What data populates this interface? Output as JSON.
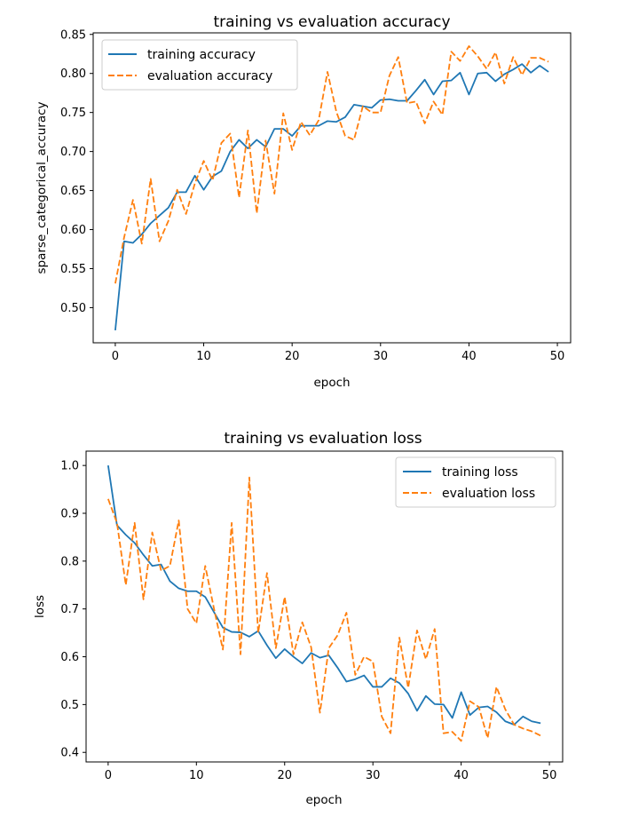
{
  "chart_data": [
    {
      "type": "line",
      "title": "training vs evaluation accuracy",
      "xlabel": "epoch",
      "ylabel": "sparse_categorical_accuracy",
      "xlim": [
        -2.5,
        51.5
      ],
      "ylim": [
        0.455,
        0.852
      ],
      "xticks": [
        0,
        10,
        20,
        30,
        40,
        50
      ],
      "yticks": [
        0.5,
        0.55,
        0.6,
        0.65,
        0.7,
        0.75,
        0.8,
        0.85
      ],
      "legend_position": "upper-left",
      "grid": false,
      "x": [
        0,
        1,
        2,
        3,
        4,
        5,
        6,
        7,
        8,
        9,
        10,
        11,
        12,
        13,
        14,
        15,
        16,
        17,
        18,
        19,
        20,
        21,
        22,
        23,
        24,
        25,
        26,
        27,
        28,
        29,
        30,
        31,
        32,
        33,
        34,
        35,
        36,
        37,
        38,
        39,
        40,
        41,
        42,
        43,
        44,
        45,
        46,
        47,
        48,
        49
      ],
      "series": [
        {
          "name": "training accuracy",
          "style": "solid",
          "color": "#1f77b4",
          "values": [
            0.471,
            0.585,
            0.583,
            0.594,
            0.608,
            0.618,
            0.628,
            0.648,
            0.648,
            0.669,
            0.651,
            0.668,
            0.675,
            0.7,
            0.715,
            0.704,
            0.715,
            0.706,
            0.729,
            0.729,
            0.72,
            0.733,
            0.733,
            0.733,
            0.739,
            0.738,
            0.744,
            0.76,
            0.758,
            0.756,
            0.766,
            0.767,
            0.765,
            0.765,
            0.778,
            0.792,
            0.773,
            0.79,
            0.791,
            0.801,
            0.773,
            0.8,
            0.801,
            0.79,
            0.799,
            0.805,
            0.812,
            0.801,
            0.81,
            0.802
          ]
        },
        {
          "name": "evaluation accuracy",
          "style": "dashed",
          "color": "#ff7f0e",
          "values": [
            0.531,
            0.59,
            0.638,
            0.582,
            0.665,
            0.585,
            0.611,
            0.651,
            0.62,
            0.659,
            0.688,
            0.663,
            0.711,
            0.723,
            0.641,
            0.727,
            0.621,
            0.714,
            0.646,
            0.749,
            0.702,
            0.738,
            0.721,
            0.74,
            0.802,
            0.751,
            0.72,
            0.715,
            0.758,
            0.75,
            0.75,
            0.797,
            0.821,
            0.762,
            0.764,
            0.736,
            0.764,
            0.747,
            0.828,
            0.816,
            0.835,
            0.822,
            0.806,
            0.827,
            0.787,
            0.821,
            0.798,
            0.82,
            0.82,
            0.815
          ]
        }
      ]
    },
    {
      "type": "line",
      "title": "training vs evaluation loss",
      "xlabel": "epoch",
      "ylabel": "loss",
      "xlim": [
        -2.5,
        51.5
      ],
      "ylim": [
        0.38,
        1.03
      ],
      "xticks": [
        0,
        10,
        20,
        30,
        40,
        50
      ],
      "yticks": [
        0.4,
        0.5,
        0.6,
        0.7,
        0.8,
        0.9,
        1.0
      ],
      "legend_position": "upper-right",
      "grid": false,
      "x": [
        0,
        1,
        2,
        3,
        4,
        5,
        6,
        7,
        8,
        9,
        10,
        11,
        12,
        13,
        14,
        15,
        16,
        17,
        18,
        19,
        20,
        21,
        22,
        23,
        24,
        25,
        26,
        27,
        28,
        29,
        30,
        31,
        32,
        33,
        34,
        35,
        36,
        37,
        38,
        39,
        40,
        41,
        42,
        43,
        44,
        45,
        46,
        47,
        48,
        49
      ],
      "series": [
        {
          "name": "training loss",
          "style": "solid",
          "color": "#1f77b4",
          "values": [
            1.0,
            0.875,
            0.855,
            0.838,
            0.813,
            0.79,
            0.793,
            0.758,
            0.743,
            0.737,
            0.737,
            0.725,
            0.693,
            0.661,
            0.652,
            0.651,
            0.642,
            0.654,
            0.624,
            0.597,
            0.616,
            0.6,
            0.586,
            0.608,
            0.598,
            0.603,
            0.577,
            0.548,
            0.553,
            0.561,
            0.537,
            0.537,
            0.555,
            0.545,
            0.523,
            0.487,
            0.518,
            0.501,
            0.5,
            0.472,
            0.526,
            0.478,
            0.494,
            0.496,
            0.484,
            0.465,
            0.458,
            0.475,
            0.465,
            0.461
          ]
        },
        {
          "name": "evaluation loss",
          "style": "dashed",
          "color": "#ff7f0e",
          "values": [
            0.93,
            0.88,
            0.75,
            0.88,
            0.72,
            0.86,
            0.78,
            0.79,
            0.885,
            0.7,
            0.67,
            0.79,
            0.7,
            0.615,
            0.88,
            0.605,
            0.975,
            0.65,
            0.775,
            0.618,
            0.725,
            0.605,
            0.672,
            0.62,
            0.483,
            0.618,
            0.645,
            0.692,
            0.562,
            0.6,
            0.59,
            0.475,
            0.44,
            0.64,
            0.535,
            0.655,
            0.595,
            0.658,
            0.44,
            0.443,
            0.424,
            0.507,
            0.495,
            0.43,
            0.537,
            0.49,
            0.458,
            0.45,
            0.444,
            0.435
          ]
        }
      ]
    }
  ]
}
